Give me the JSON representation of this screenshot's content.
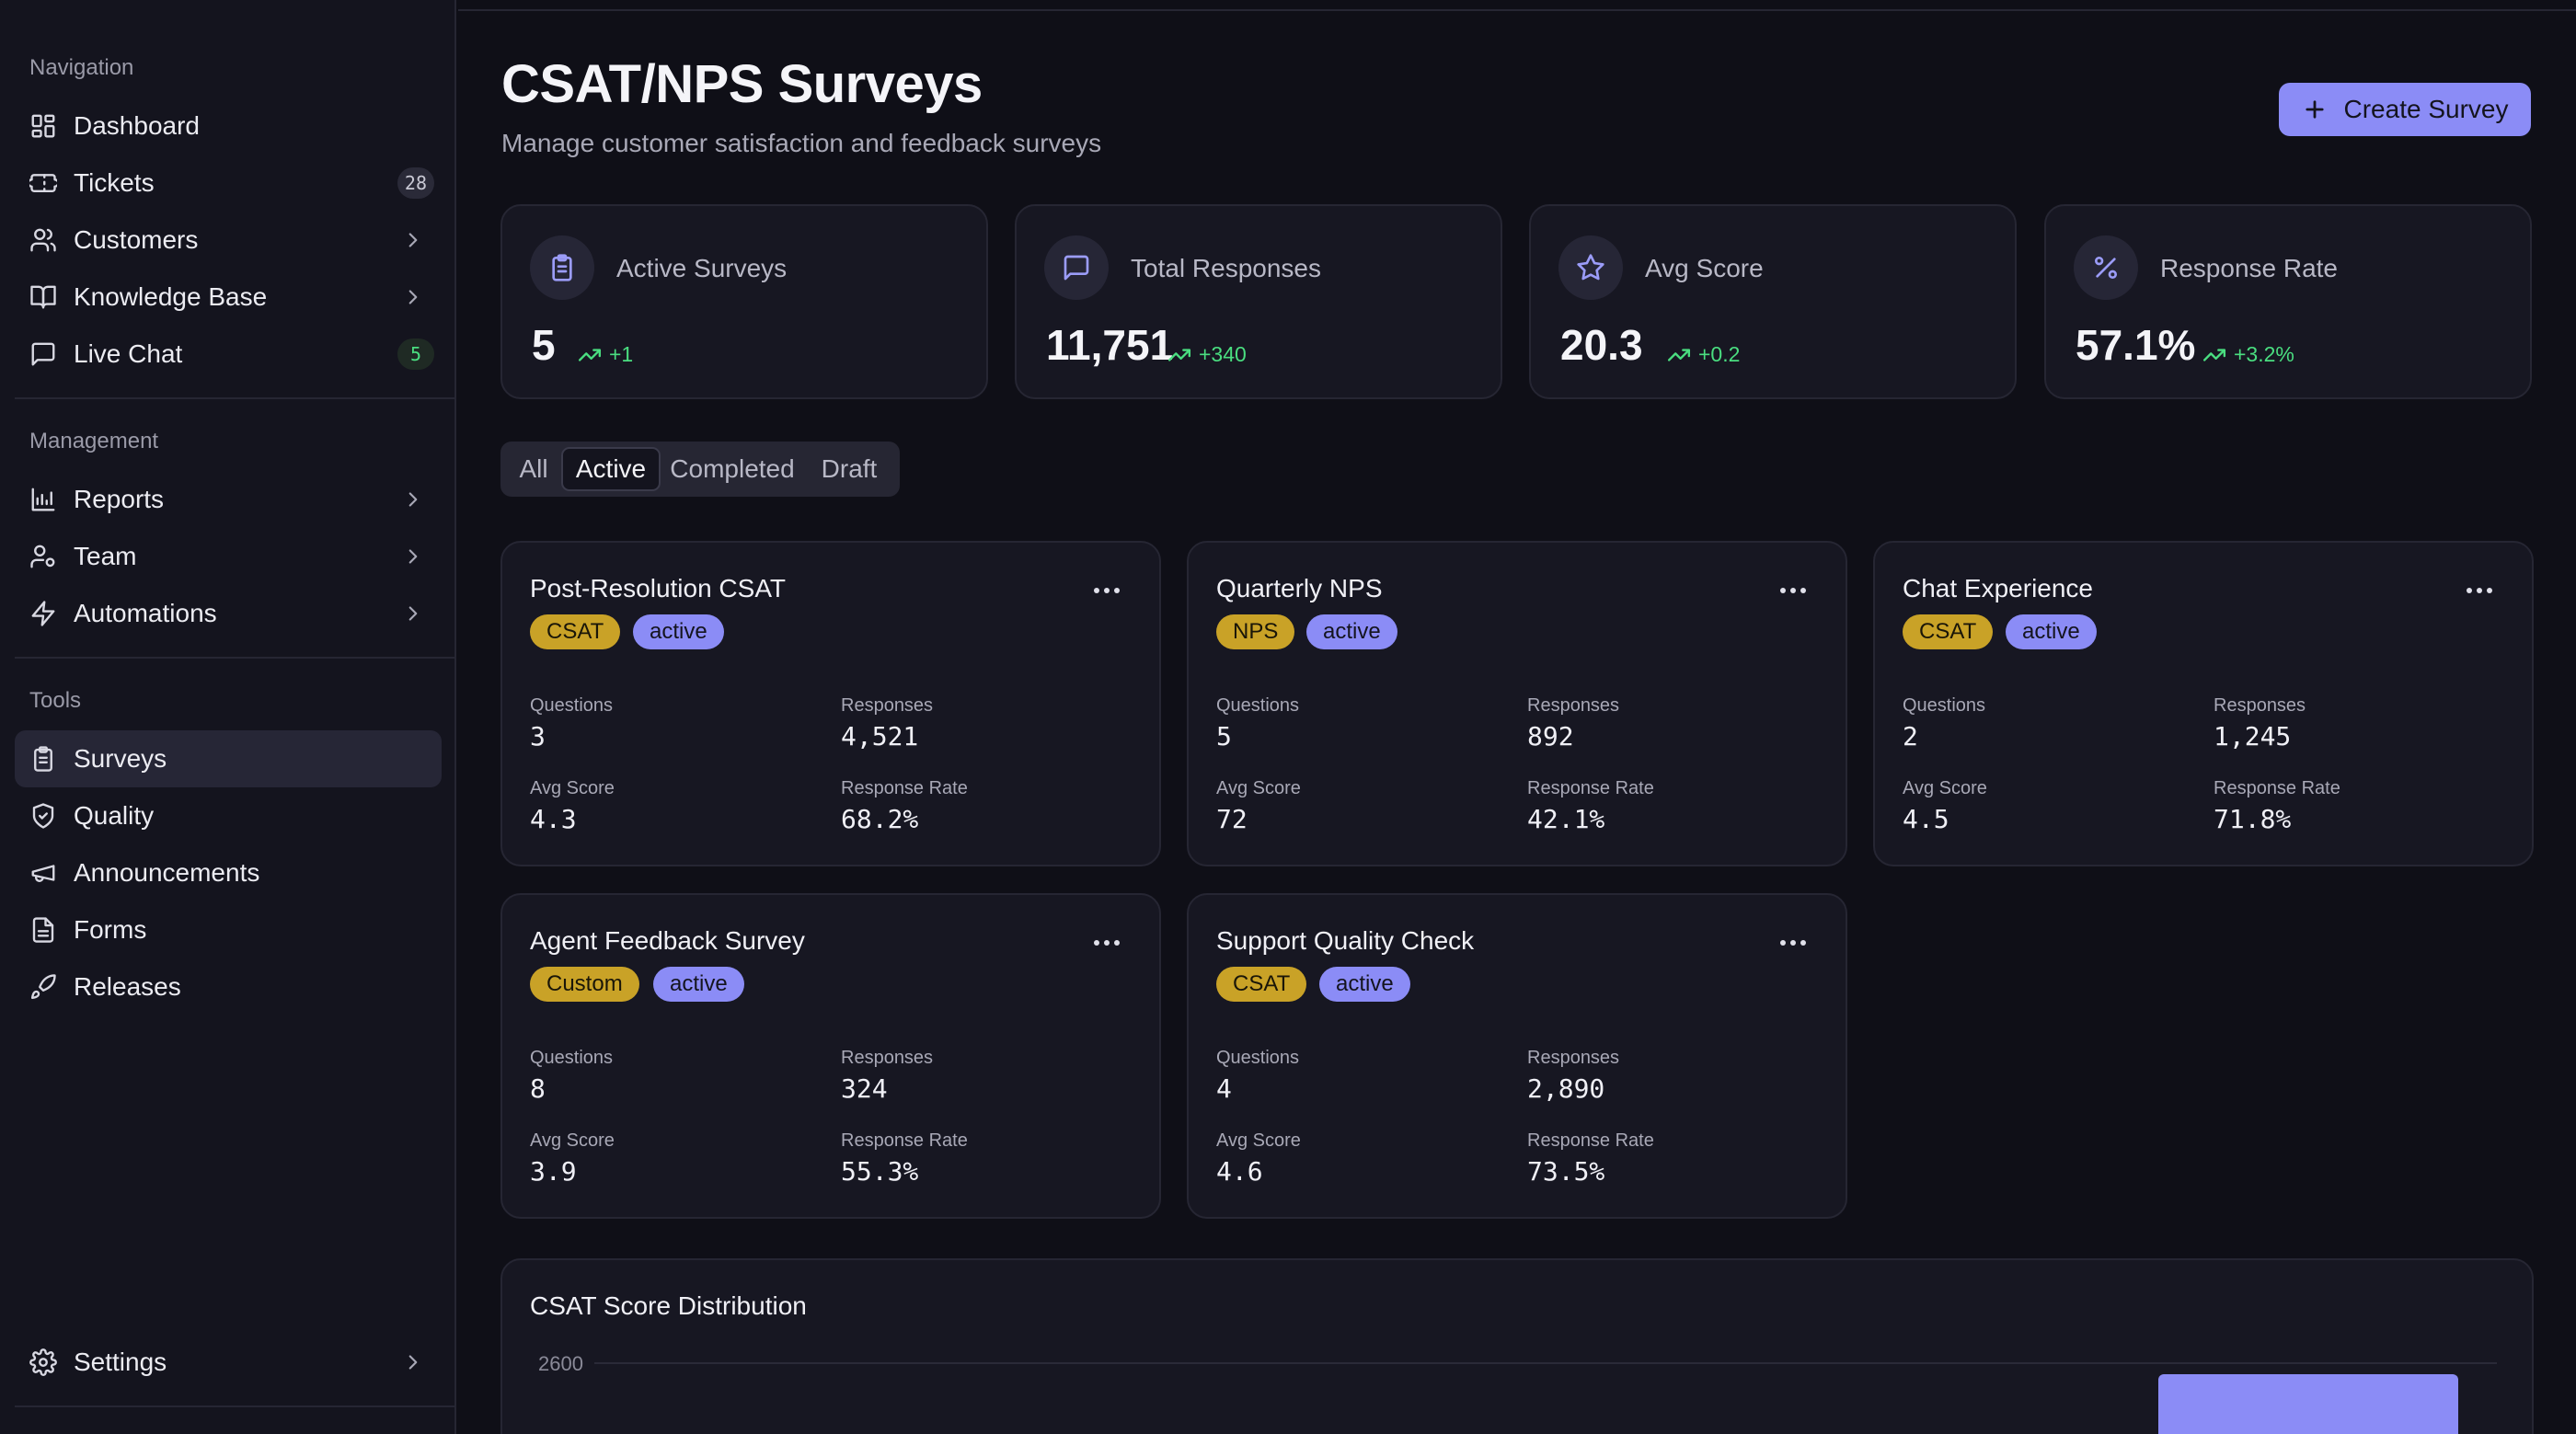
{
  "sidebar": {
    "sections": [
      {
        "label": "Navigation",
        "items": [
          {
            "label": "Dashboard",
            "icon": "dashboard-icon"
          },
          {
            "label": "Tickets",
            "icon": "ticket-icon",
            "badge": "28"
          },
          {
            "label": "Customers",
            "icon": "users-icon",
            "chevron": true
          },
          {
            "label": "Knowledge Base",
            "icon": "book-icon",
            "chevron": true
          },
          {
            "label": "Live Chat",
            "icon": "chat-icon",
            "badge": "5"
          }
        ]
      },
      {
        "label": "Management",
        "items": [
          {
            "label": "Reports",
            "icon": "bar-chart-icon",
            "chevron": true
          },
          {
            "label": "Team",
            "icon": "team-icon",
            "chevron": true
          },
          {
            "label": "Automations",
            "icon": "lightning-icon",
            "chevron": true
          }
        ]
      },
      {
        "label": "Tools",
        "items": [
          {
            "label": "Surveys",
            "icon": "clipboard-icon",
            "active": true
          },
          {
            "label": "Quality",
            "icon": "shield-check-icon"
          },
          {
            "label": "Announcements",
            "icon": "megaphone-icon"
          },
          {
            "label": "Forms",
            "icon": "document-icon"
          },
          {
            "label": "Releases",
            "icon": "rocket-icon"
          }
        ]
      }
    ],
    "settings": {
      "label": "Settings",
      "icon": "gear-icon"
    }
  },
  "header": {
    "title": "CSAT/NPS Surveys",
    "subtitle": "Manage customer satisfaction and feedback surveys",
    "create_label": "Create Survey"
  },
  "stats": [
    {
      "label": "Active Surveys",
      "value": "5",
      "delta": "+1",
      "icon": "clipboard-icon"
    },
    {
      "label": "Total Responses",
      "value": "11,751",
      "delta": "+340",
      "icon": "chat-icon"
    },
    {
      "label": "Avg Score",
      "value": "20.3",
      "delta": "+0.2",
      "icon": "star-icon"
    },
    {
      "label": "Response Rate",
      "value": "57.1%",
      "delta": "+3.2%",
      "icon": "percent-icon"
    }
  ],
  "tabs": {
    "items": [
      "All",
      "Active",
      "Completed",
      "Draft"
    ],
    "active": "Active"
  },
  "metric_labels": {
    "questions": "Questions",
    "responses": "Responses",
    "avg_score": "Avg Score",
    "response_rate": "Response Rate"
  },
  "surveys": [
    {
      "title": "Post-Resolution CSAT",
      "type": "CSAT",
      "status": "active",
      "questions": "3",
      "responses": "4,521",
      "avg_score": "4.3",
      "response_rate": "68.2%"
    },
    {
      "title": "Quarterly NPS",
      "type": "NPS",
      "status": "active",
      "questions": "5",
      "responses": "892",
      "avg_score": "72",
      "response_rate": "42.1%"
    },
    {
      "title": "Chat Experience",
      "type": "CSAT",
      "status": "active",
      "questions": "2",
      "responses": "1,245",
      "avg_score": "4.5",
      "response_rate": "71.8%"
    },
    {
      "title": "Agent Feedback Survey",
      "type": "Custom",
      "status": "active",
      "questions": "8",
      "responses": "324",
      "avg_score": "3.9",
      "response_rate": "55.3%"
    },
    {
      "title": "Support Quality Check",
      "type": "CSAT",
      "status": "active",
      "questions": "4",
      "responses": "2,890",
      "avg_score": "4.6",
      "response_rate": "73.5%"
    }
  ],
  "chart": {
    "title": "CSAT Score Distribution"
  },
  "chart_data": {
    "type": "bar",
    "title": "CSAT Score Distribution",
    "yticks": [
      "2600"
    ],
    "ylim": [
      0,
      2600
    ],
    "visible_bar_value_at_least": 2600,
    "bar_color": "#8b8cf6"
  },
  "colors": {
    "accent": "#8b8cf6",
    "type_tag": "#c9a227",
    "positive": "#4ade80",
    "background": "#0f0f17"
  }
}
